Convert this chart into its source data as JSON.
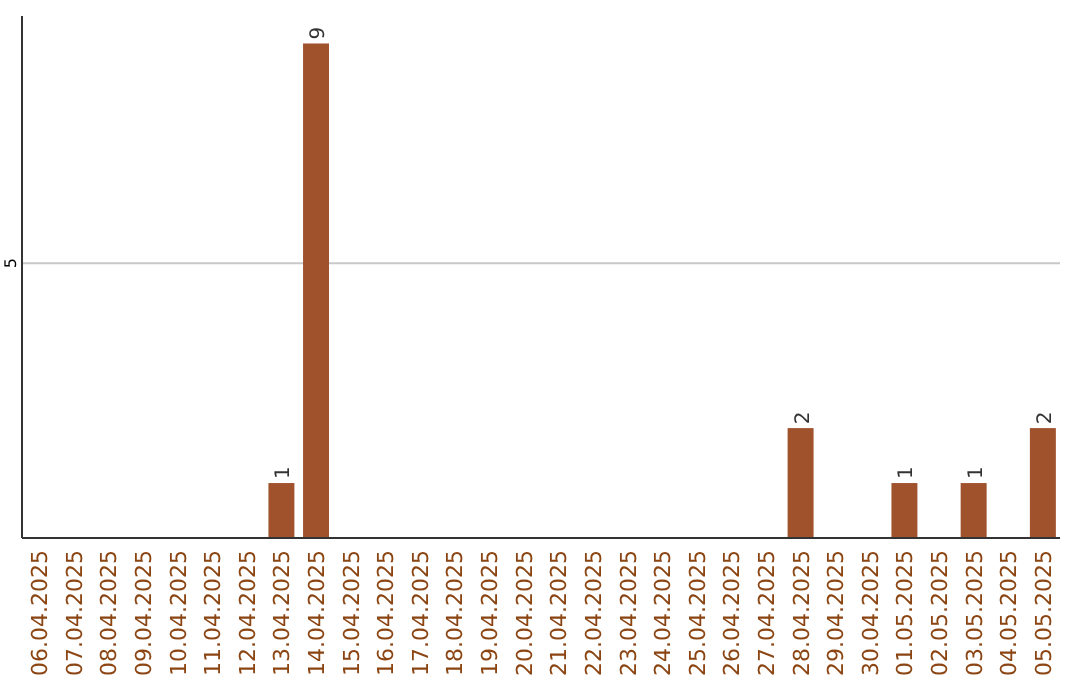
{
  "chart_data": {
    "type": "bar",
    "categories": [
      "06.04.2025",
      "07.04.2025",
      "08.04.2025",
      "09.04.2025",
      "10.04.2025",
      "11.04.2025",
      "12.04.2025",
      "13.04.2025",
      "14.04.2025",
      "15.04.2025",
      "16.04.2025",
      "17.04.2025",
      "18.04.2025",
      "19.04.2025",
      "20.04.2025",
      "21.04.2025",
      "22.04.2025",
      "23.04.2025",
      "24.04.2025",
      "25.04.2025",
      "26.04.2025",
      "27.04.2025",
      "28.04.2025",
      "29.04.2025",
      "30.04.2025",
      "01.05.2025",
      "02.05.2025",
      "03.05.2025",
      "04.05.2025",
      "05.05.2025"
    ],
    "values": [
      0,
      0,
      0,
      0,
      0,
      0,
      0,
      1,
      9,
      0,
      0,
      0,
      0,
      0,
      0,
      0,
      0,
      0,
      0,
      0,
      0,
      0,
      2,
      0,
      0,
      1,
      0,
      1,
      0,
      2
    ],
    "value_labels": [
      null,
      null,
      null,
      null,
      null,
      null,
      null,
      "1",
      "9",
      null,
      null,
      null,
      null,
      null,
      null,
      null,
      null,
      null,
      null,
      null,
      null,
      null,
      "2",
      null,
      null,
      "1",
      null,
      "1",
      null,
      "2"
    ],
    "color": "#a0522d",
    "ylim": [
      0,
      9.5
    ],
    "yticks": [
      5
    ],
    "grid": "y"
  }
}
